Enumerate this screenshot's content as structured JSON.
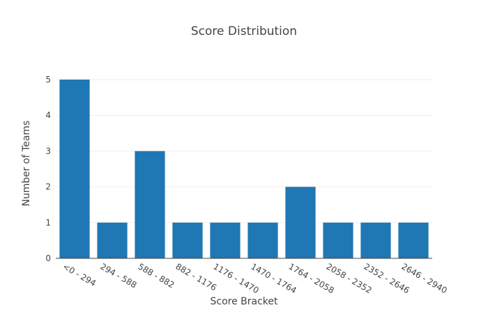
{
  "chart_data": {
    "type": "bar",
    "title": "Score Distribution",
    "xlabel": "Score Bracket",
    "ylabel": "Number of Teams",
    "categories": [
      "<0 - 294",
      "294 - 588",
      "588 - 882",
      "882 - 1176",
      "1176 - 1470",
      "1470 - 1764",
      "1764 - 2058",
      "2058 - 2352",
      "2352 - 2646",
      "2646 - 2940"
    ],
    "values": [
      5,
      1,
      3,
      1,
      1,
      1,
      2,
      1,
      1,
      1
    ],
    "ylim": [
      0,
      5
    ],
    "yticks": [
      0,
      1,
      2,
      3,
      4,
      5
    ],
    "grid": true,
    "legend": "none",
    "bar_color": "#1f77b4",
    "grid_color": "#eeeeee",
    "axis_color": "#444444"
  }
}
